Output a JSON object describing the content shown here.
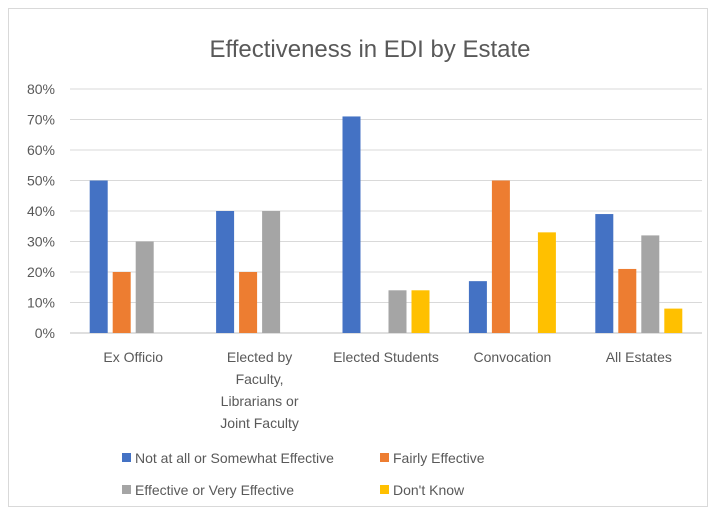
{
  "chart_data": {
    "type": "bar",
    "title": "Effectiveness in EDI by Estate",
    "xlabel": "",
    "ylabel": "",
    "ylim": [
      0,
      80
    ],
    "y_ticks": [
      "0%",
      "10%",
      "20%",
      "30%",
      "40%",
      "50%",
      "60%",
      "70%",
      "80%"
    ],
    "grid": true,
    "legend_position": "bottom",
    "categories": [
      [
        "Ex Officio"
      ],
      [
        "Elected by",
        "Faculty,",
        "Librarians or",
        "Joint Faculty"
      ],
      [
        "Elected Students"
      ],
      [
        "Convocation"
      ],
      [
        "All Estates"
      ]
    ],
    "series": [
      {
        "name": "Not at all or Somewhat Effective",
        "color": "#4472c4",
        "values": [
          50,
          40,
          71,
          17,
          39
        ]
      },
      {
        "name": "Fairly Effective",
        "color": "#ed7d31",
        "values": [
          20,
          20,
          0,
          50,
          21
        ]
      },
      {
        "name": "Effective or Very Effective",
        "color": "#a5a5a5",
        "values": [
          30,
          40,
          14,
          0,
          32
        ]
      },
      {
        "name": "Don't Know",
        "color": "#ffc000",
        "values": [
          0,
          0,
          14,
          33,
          8
        ]
      }
    ]
  }
}
